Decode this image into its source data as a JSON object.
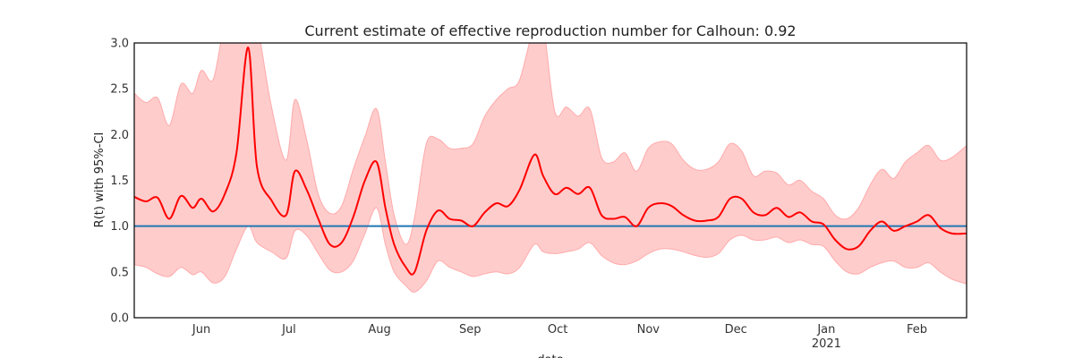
{
  "chart_data": {
    "type": "line",
    "title": "Current estimate of effective reproduction number for Calhoun: 0.92",
    "xlabel": "date",
    "ylabel": "R(t) with 95%-CI",
    "xlim": [
      "2020-05-09",
      "2021-02-18"
    ],
    "ylim": [
      0,
      3
    ],
    "y_ticks": [
      "0.0",
      "0.5",
      "1.0",
      "1.5",
      "2.0",
      "2.5",
      "3.0"
    ],
    "x_ticks": [
      {
        "date": "2020-06-01",
        "label": "Jun",
        "sublabel": ""
      },
      {
        "date": "2020-07-01",
        "label": "Jul",
        "sublabel": ""
      },
      {
        "date": "2020-08-01",
        "label": "Aug",
        "sublabel": ""
      },
      {
        "date": "2020-09-01",
        "label": "Sep",
        "sublabel": ""
      },
      {
        "date": "2020-10-01",
        "label": "Oct",
        "sublabel": ""
      },
      {
        "date": "2020-11-01",
        "label": "Nov",
        "sublabel": ""
      },
      {
        "date": "2020-12-01",
        "label": "Dec",
        "sublabel": ""
      },
      {
        "date": "2021-01-01",
        "label": "Jan",
        "sublabel": "2021"
      },
      {
        "date": "2021-02-01",
        "label": "Feb",
        "sublabel": ""
      }
    ],
    "reference_line": 1.0,
    "grid": false,
    "colors": {
      "estimate": "#ff0000",
      "ci_fill": "#ffcccc",
      "ci_edge": "#ffaaaa",
      "reference": "#1f77b4"
    },
    "series": [
      {
        "x": [
          "2020-05-09",
          "2020-05-13",
          "2020-05-17",
          "2020-05-21",
          "2020-05-25",
          "2020-05-29",
          "2020-06-01",
          "2020-06-05",
          "2020-06-09",
          "2020-06-13",
          "2020-06-17",
          "2020-06-20",
          "2020-06-25",
          "2020-06-30",
          "2020-07-03",
          "2020-07-07",
          "2020-07-11",
          "2020-07-15",
          "2020-07-19",
          "2020-07-23",
          "2020-07-27",
          "2020-07-31",
          "2020-08-03",
          "2020-08-06",
          "2020-08-10",
          "2020-08-13",
          "2020-08-17",
          "2020-08-21",
          "2020-08-25",
          "2020-08-29",
          "2020-09-02",
          "2020-09-06",
          "2020-09-10",
          "2020-09-14",
          "2020-09-18",
          "2020-09-23",
          "2020-09-26",
          "2020-09-30",
          "2020-10-04",
          "2020-10-08",
          "2020-10-12",
          "2020-10-16",
          "2020-10-20",
          "2020-10-24",
          "2020-10-28",
          "2020-11-01",
          "2020-11-05",
          "2020-11-09",
          "2020-11-13",
          "2020-11-17",
          "2020-11-21",
          "2020-11-25",
          "2020-11-29",
          "2020-12-03",
          "2020-12-07",
          "2020-12-11",
          "2020-12-15",
          "2020-12-19",
          "2020-12-23",
          "2020-12-27",
          "2020-12-31",
          "2021-01-04",
          "2021-01-08",
          "2021-01-12",
          "2021-01-16",
          "2021-01-20",
          "2021-01-24",
          "2021-01-28",
          "2021-02-01",
          "2021-02-05",
          "2021-02-09",
          "2021-02-13",
          "2021-02-18"
        ],
        "values": [
          1.32,
          1.27,
          1.31,
          1.08,
          1.33,
          1.2,
          1.3,
          1.16,
          1.35,
          1.8,
          2.95,
          1.65,
          1.28,
          1.12,
          1.6,
          1.4,
          1.08,
          0.8,
          0.82,
          1.1,
          1.5,
          1.7,
          1.2,
          0.8,
          0.55,
          0.5,
          0.95,
          1.17,
          1.08,
          1.06,
          1.0,
          1.15,
          1.25,
          1.22,
          1.4,
          1.78,
          1.55,
          1.35,
          1.42,
          1.35,
          1.42,
          1.12,
          1.08,
          1.1,
          1.0,
          1.2,
          1.25,
          1.22,
          1.12,
          1.06,
          1.06,
          1.1,
          1.3,
          1.3,
          1.15,
          1.12,
          1.2,
          1.1,
          1.15,
          1.05,
          1.02,
          0.85,
          0.75,
          0.78,
          0.95,
          1.05,
          0.95,
          1.0,
          1.05,
          1.12,
          0.98,
          0.92,
          0.92
        ]
      },
      {
        "x": [
          "2020-05-09",
          "2020-05-13",
          "2020-05-17",
          "2020-05-21",
          "2020-05-25",
          "2020-05-29",
          "2020-06-01",
          "2020-06-05",
          "2020-06-09",
          "2020-06-13",
          "2020-06-17",
          "2020-06-20",
          "2020-06-25",
          "2020-06-30",
          "2020-07-03",
          "2020-07-07",
          "2020-07-11",
          "2020-07-15",
          "2020-07-19",
          "2020-07-23",
          "2020-07-27",
          "2020-07-31",
          "2020-08-03",
          "2020-08-06",
          "2020-08-10",
          "2020-08-13",
          "2020-08-17",
          "2020-08-21",
          "2020-08-25",
          "2020-08-29",
          "2020-09-02",
          "2020-09-06",
          "2020-09-10",
          "2020-09-14",
          "2020-09-18",
          "2020-09-23",
          "2020-09-26",
          "2020-09-30",
          "2020-10-04",
          "2020-10-08",
          "2020-10-12",
          "2020-10-16",
          "2020-10-20",
          "2020-10-24",
          "2020-10-28",
          "2020-11-01",
          "2020-11-05",
          "2020-11-09",
          "2020-11-13",
          "2020-11-17",
          "2020-11-21",
          "2020-11-25",
          "2020-11-29",
          "2020-12-03",
          "2020-12-07",
          "2020-12-11",
          "2020-12-15",
          "2020-12-19",
          "2020-12-23",
          "2020-12-27",
          "2020-12-31",
          "2021-01-04",
          "2021-01-08",
          "2021-01-12",
          "2021-01-16",
          "2021-01-20",
          "2021-01-24",
          "2021-01-28",
          "2021-02-01",
          "2021-02-05",
          "2021-02-09",
          "2021-02-13",
          "2021-02-18"
        ],
        "lower": [
          0.58,
          0.55,
          0.48,
          0.45,
          0.55,
          0.47,
          0.5,
          0.38,
          0.45,
          0.75,
          1.0,
          0.82,
          0.72,
          0.65,
          0.95,
          0.9,
          0.7,
          0.52,
          0.5,
          0.62,
          0.92,
          1.2,
          0.8,
          0.5,
          0.35,
          0.28,
          0.4,
          0.62,
          0.55,
          0.5,
          0.45,
          0.48,
          0.5,
          0.48,
          0.55,
          0.8,
          0.72,
          0.7,
          0.72,
          0.75,
          0.82,
          0.68,
          0.6,
          0.58,
          0.62,
          0.7,
          0.75,
          0.75,
          0.72,
          0.68,
          0.66,
          0.7,
          0.85,
          0.9,
          0.85,
          0.85,
          0.88,
          0.82,
          0.85,
          0.8,
          0.78,
          0.62,
          0.5,
          0.48,
          0.55,
          0.6,
          0.62,
          0.55,
          0.55,
          0.6,
          0.5,
          0.42,
          0.37
        ],
        "upper": [
          2.45,
          2.35,
          2.4,
          2.1,
          2.55,
          2.45,
          2.7,
          2.6,
          3.2,
          3.2,
          3.2,
          3.2,
          2.3,
          1.72,
          2.38,
          1.95,
          1.35,
          1.14,
          1.22,
          1.62,
          1.98,
          2.28,
          1.7,
          1.12,
          0.8,
          1.1,
          1.9,
          1.95,
          1.85,
          1.85,
          1.9,
          2.2,
          2.38,
          2.5,
          2.6,
          3.2,
          3.2,
          2.25,
          2.3,
          2.2,
          2.28,
          1.75,
          1.7,
          1.8,
          1.6,
          1.85,
          1.92,
          1.9,
          1.72,
          1.62,
          1.62,
          1.7,
          1.9,
          1.82,
          1.55,
          1.6,
          1.58,
          1.45,
          1.5,
          1.38,
          1.3,
          1.12,
          1.08,
          1.2,
          1.45,
          1.62,
          1.52,
          1.7,
          1.8,
          1.88,
          1.72,
          1.75,
          1.88
        ]
      }
    ]
  }
}
